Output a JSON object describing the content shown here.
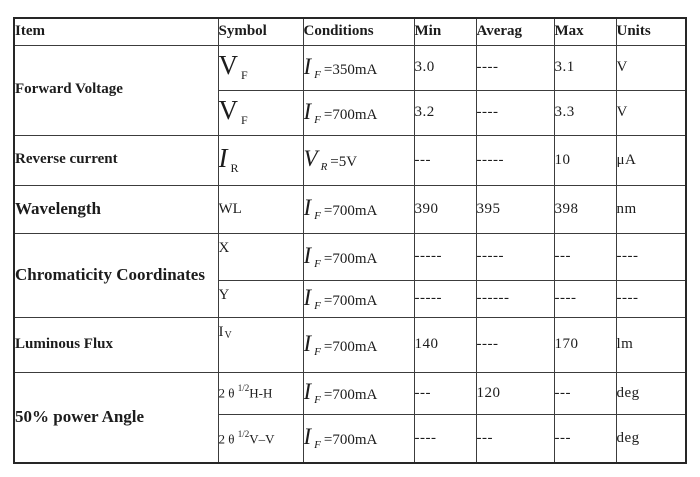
{
  "table": {
    "headers": [
      "Item",
      "Symbol",
      "Conditions",
      "Min",
      "Averag",
      "Max",
      "Units"
    ],
    "rows": [
      {
        "item": {
          "text": "Forward Voltage",
          "rowspan": 2,
          "large": false
        },
        "symbol": {
          "kind": "sub-large",
          "base": "V",
          "sub": "F",
          "italic": false
        },
        "cond": {
          "base": "I",
          "sub": "F",
          "rest": "=350mA"
        },
        "min": "3.0",
        "avg": "----",
        "max": "3.1",
        "units": "V"
      },
      {
        "symbol": {
          "kind": "sub-large",
          "base": "V",
          "sub": "F",
          "italic": false
        },
        "cond": {
          "base": "I",
          "sub": "F",
          "rest": "=700mA"
        },
        "min": "3.2",
        "avg": "----",
        "max": "3.3",
        "units": "V"
      },
      {
        "item": {
          "text": "Reverse current",
          "rowspan": 1,
          "large": false
        },
        "symbol": {
          "kind": "sub-large",
          "base": "I",
          "sub": "R",
          "italic": true
        },
        "cond": {
          "base": "V",
          "sub": "R",
          "rest": "=5V"
        },
        "min": "---",
        "avg": "-----",
        "max": "10",
        "units": "μA"
      },
      {
        "item": {
          "text": "Wavelength",
          "rowspan": 1,
          "large": true
        },
        "symbol": {
          "kind": "text",
          "text": "WL"
        },
        "cond": {
          "base": "I",
          "sub": "F",
          "rest": "=700mA"
        },
        "min": "390",
        "avg": "395",
        "max": "398",
        "units": "nm"
      },
      {
        "item": {
          "text": "Chromaticity Coordinates",
          "rowspan": 2,
          "large": true
        },
        "symbol": {
          "kind": "text",
          "text": "X",
          "top": true
        },
        "cond": {
          "base": "I",
          "sub": "F",
          "rest": "=700mA"
        },
        "min": "-----",
        "avg": "-----",
        "max": "---",
        "units": "----"
      },
      {
        "symbol": {
          "kind": "text",
          "text": "Y",
          "top": true
        },
        "cond": {
          "base": "I",
          "sub": "F",
          "rest": "=700mA"
        },
        "min": "-----",
        "avg": "------",
        "max": "----",
        "units": "----"
      },
      {
        "item": {
          "text": "Luminous Flux",
          "rowspan": 1,
          "large": false
        },
        "symbol": {
          "kind": "sub-small",
          "base": "I",
          "sub": "V",
          "top": true
        },
        "cond": {
          "base": "I",
          "sub": "F",
          "rest": "=700mA"
        },
        "min": "140",
        "avg": "----",
        "max": "170",
        "units": "lm"
      },
      {
        "item": {
          "text": "50% power Angle",
          "rowspan": 2,
          "large": true
        },
        "symbol": {
          "kind": "angle",
          "pre": "2 θ ",
          "sup": "1/2",
          "post": "H-H"
        },
        "cond": {
          "base": "I",
          "sub": "F",
          "rest": "=700mA"
        },
        "min": "---",
        "avg": "120",
        "max": "---",
        "units": "deg"
      },
      {
        "symbol": {
          "kind": "angle",
          "pre": "2 θ ",
          "sup": "1/2",
          "post": "V–V"
        },
        "cond": {
          "base": "I",
          "sub": "F",
          "rest": "=700mA"
        },
        "min": "----",
        "avg": "---",
        "max": "---",
        "units": "deg"
      }
    ]
  }
}
